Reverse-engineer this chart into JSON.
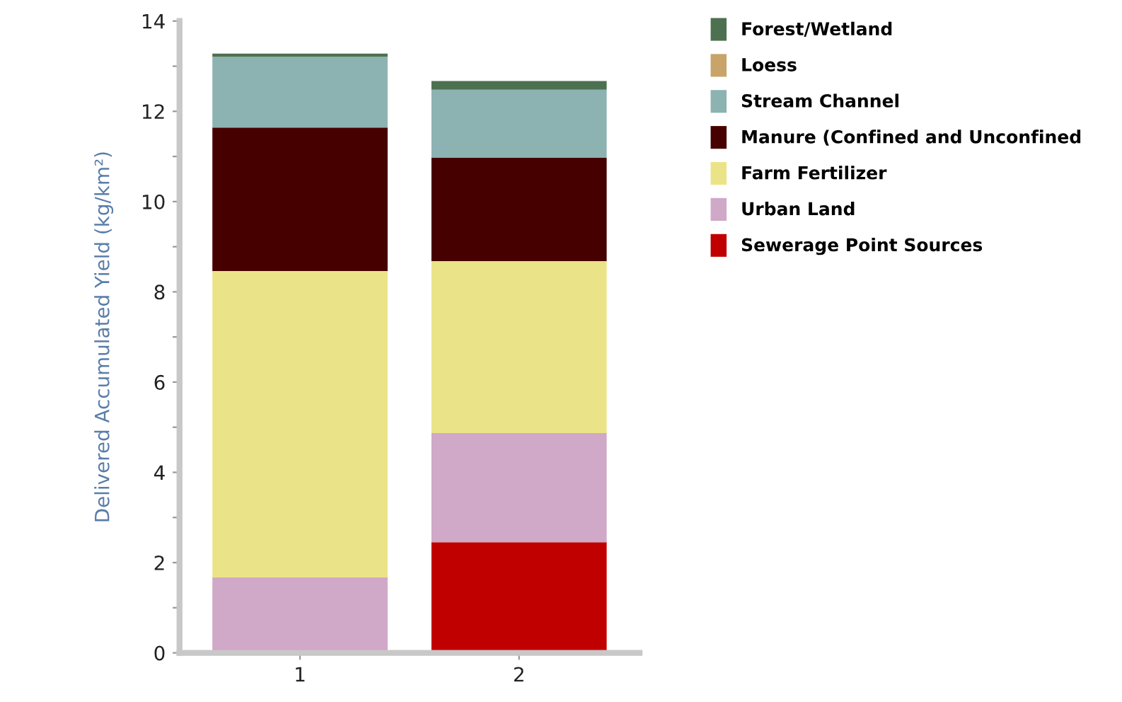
{
  "chart_data": {
    "type": "bar",
    "stacked": true,
    "ylabel": "Delivered Accumulated Yield (kg/km²)",
    "categories": [
      "1",
      "2"
    ],
    "series": [
      {
        "name": "Sewerage Point Sources",
        "color": "#c00000",
        "values": [
          0,
          2.45
        ]
      },
      {
        "name": "Urban Land",
        "color": "#d0a8c8",
        "values": [
          1.67,
          2.42
        ]
      },
      {
        "name": "Farm Fertilizer",
        "color": "#ebe387",
        "values": [
          6.79,
          3.81
        ]
      },
      {
        "name": "Manure (Confined and Unconfined",
        "color": "#460000",
        "values": [
          3.18,
          2.29
        ]
      },
      {
        "name": "Stream Channel",
        "color": "#8db2b2",
        "values": [
          1.57,
          1.51
        ]
      },
      {
        "name": "Loess",
        "color": "#c8a46a",
        "values": [
          0,
          0
        ]
      },
      {
        "name": "Forest/Wetland",
        "color": "#4d7050",
        "values": [
          0.07,
          0.19
        ]
      }
    ],
    "ylim": [
      0,
      14
    ],
    "yticks": [
      0,
      {
        "value": 1,
        "label": null
      },
      2,
      {
        "value": 3,
        "label": null
      },
      4,
      {
        "value": 5,
        "label": null
      },
      6,
      {
        "value": 7,
        "label": null
      },
      8,
      {
        "value": 9,
        "label": null
      },
      10,
      {
        "value": 11,
        "label": null
      },
      12,
      {
        "value": 13,
        "label": null
      },
      14
    ],
    "grid": false,
    "legend": "top right"
  }
}
